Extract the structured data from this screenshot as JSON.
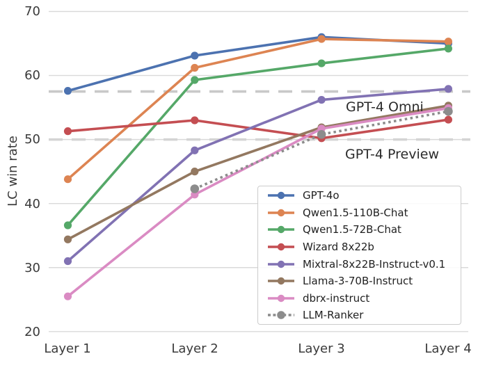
{
  "chart_data": {
    "type": "line",
    "title": "",
    "xlabel": "",
    "ylabel": "LC win rate",
    "categories": [
      "Layer 1",
      "Layer 2",
      "Layer 3",
      "Layer 4"
    ],
    "ylim": [
      20,
      70
    ],
    "yticks": [
      70,
      60,
      50,
      40,
      30,
      20
    ],
    "grid": true,
    "legend_position": "lower right",
    "series": [
      {
        "name": "GPT-4o",
        "color": "#4C72B0",
        "style": "solid",
        "values": [
          57.6,
          63.1,
          66.0,
          65.0
        ]
      },
      {
        "name": "Qwen1.5-110B-Chat",
        "color": "#DD8452",
        "style": "solid",
        "values": [
          43.8,
          61.2,
          65.7,
          65.3
        ]
      },
      {
        "name": "Qwen1.5-72B-Chat",
        "color": "#55A868",
        "style": "solid",
        "values": [
          36.6,
          59.3,
          61.9,
          64.2
        ]
      },
      {
        "name": "Wizard 8x22b",
        "color": "#C44E52",
        "style": "solid",
        "values": [
          51.3,
          53.0,
          50.2,
          53.1
        ]
      },
      {
        "name": "Mixtral-8x22B-Instruct-v0.1",
        "color": "#8172B3",
        "style": "solid",
        "values": [
          31.0,
          48.3,
          56.2,
          57.9
        ]
      },
      {
        "name": "Llama-3-70B-Instruct",
        "color": "#937860",
        "style": "solid",
        "values": [
          34.4,
          45.0,
          51.9,
          55.3
        ]
      },
      {
        "name": "dbrx-instruct",
        "color": "#DA8BC3",
        "style": "solid",
        "values": [
          25.5,
          41.4,
          51.7,
          54.9
        ]
      },
      {
        "name": "LLM-Ranker",
        "color": "#8C8C8C",
        "style": "dotted",
        "values": [
          null,
          42.3,
          50.8,
          54.4
        ]
      }
    ],
    "reference_lines": [
      {
        "label": "GPT-4 Omni",
        "value": 57.5,
        "color": "#c9c9c9"
      },
      {
        "label": "GPT-4 Preview",
        "value": 50.0,
        "color": "#d4d4d4"
      }
    ]
  }
}
